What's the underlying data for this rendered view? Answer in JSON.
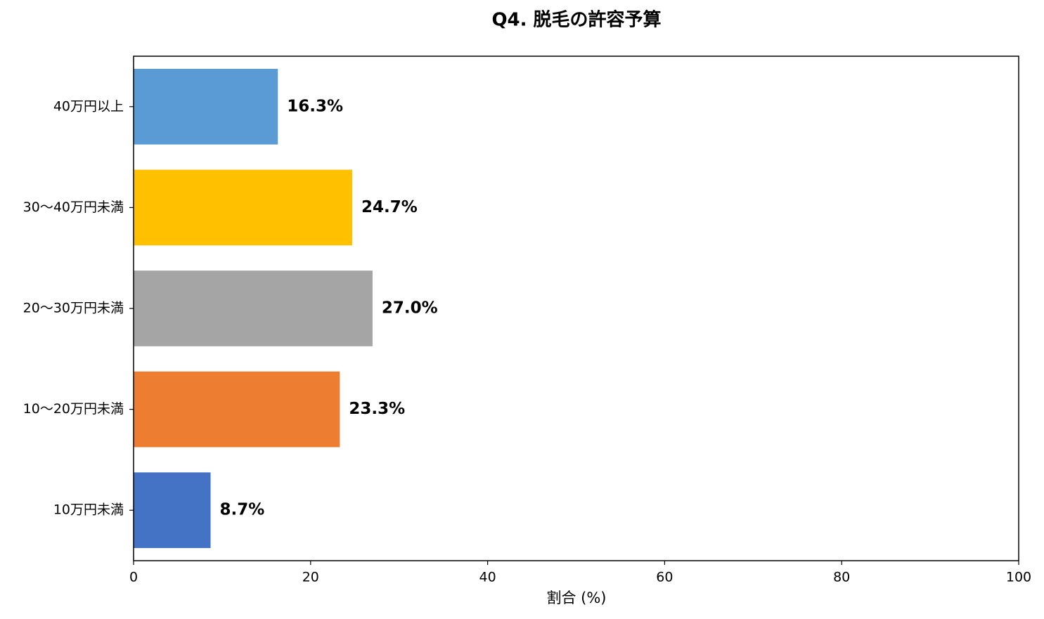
{
  "chart_data": {
    "type": "barh",
    "title": "Q4. 脱毛の許容予算",
    "xlabel": "割合 (%)",
    "categories": [
      "10万円未満",
      "10〜20万円未満",
      "20〜30万円未満",
      "30〜40万円未満",
      "40万円以上"
    ],
    "values": [
      8.7,
      23.3,
      27.0,
      24.7,
      16.3
    ],
    "value_labels": [
      "8.7%",
      "23.3%",
      "27.0%",
      "24.7%",
      "16.3%"
    ],
    "colors": [
      "#4472c4",
      "#ed7d31",
      "#a5a5a5",
      "#ffc000",
      "#5b9bd5"
    ],
    "xlim": [
      0,
      100
    ],
    "xticks": [
      0,
      20,
      40,
      60,
      80,
      100
    ],
    "grid": false
  }
}
